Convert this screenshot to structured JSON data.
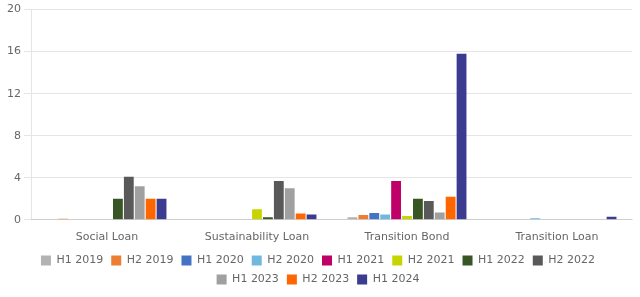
{
  "chart_data": {
    "type": "bar",
    "categories": [
      "Social Loan",
      "Sustainability Loan",
      "Transition Bond",
      "Transition Loan"
    ],
    "series": [
      {
        "name": "H1 2019",
        "color": "#b2b2b2",
        "values": [
          0.05,
          0.0,
          0.25,
          0.0
        ]
      },
      {
        "name": "H2 2019",
        "color": "#ed7d31",
        "values": [
          0.1,
          0.0,
          0.45,
          0.0
        ]
      },
      {
        "name": "H1 2020",
        "color": "#4472c4",
        "values": [
          0.05,
          0.0,
          0.65,
          0.0
        ]
      },
      {
        "name": "H2 2020",
        "color": "#70b8e0",
        "values": [
          0.05,
          0.0,
          0.5,
          0.15
        ]
      },
      {
        "name": "H1 2021",
        "color": "#bf0069",
        "values": [
          0.05,
          0.0,
          3.7,
          0.0
        ]
      },
      {
        "name": "H2 2021",
        "color": "#c8d400",
        "values": [
          0.0,
          1.0,
          0.35,
          0.0
        ]
      },
      {
        "name": "H1 2022",
        "color": "#375623",
        "values": [
          2.0,
          0.25,
          2.0,
          0.0
        ]
      },
      {
        "name": "H2 2022",
        "color": "#595959",
        "values": [
          4.1,
          3.7,
          1.8,
          0.0
        ]
      },
      {
        "name": "H1 2023",
        "color": "#a0a0a0",
        "values": [
          3.2,
          3.0,
          0.7,
          0.0
        ]
      },
      {
        "name": "H2 2023",
        "color": "#ff6600",
        "values": [
          2.0,
          0.6,
          2.2,
          0.0
        ]
      },
      {
        "name": "H1 2024",
        "color": "#3b3b8f",
        "values": [
          2.0,
          0.5,
          15.8,
          0.3
        ]
      }
    ],
    "ylim": [
      0,
      20
    ],
    "yticks": [
      0,
      4,
      8,
      12,
      16,
      20
    ],
    "grid": true,
    "legend": "bottom"
  }
}
